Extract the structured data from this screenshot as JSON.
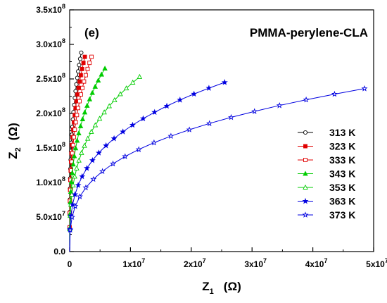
{
  "chart_data": {
    "type": "line",
    "title": "PMMA-perylene-CLA",
    "panel_label": "(e)",
    "xlabel": {
      "main": "Z",
      "sub": "1",
      "unit": "(Ω)"
    },
    "ylabel": {
      "main": "Z",
      "sub": "2",
      "unit": "(Ω)"
    },
    "xlim": [
      0,
      50000000
    ],
    "ylim": [
      0,
      350000000
    ],
    "x_ticks": [
      {
        "value": 0,
        "label": "0"
      },
      {
        "value": 10000000,
        "mant": "1x10",
        "exp": "7"
      },
      {
        "value": 20000000,
        "mant": "2x10",
        "exp": "7"
      },
      {
        "value": 30000000,
        "mant": "3x10",
        "exp": "7"
      },
      {
        "value": 40000000,
        "mant": "4x10",
        "exp": "7"
      },
      {
        "value": 50000000,
        "mant": "5x10",
        "exp": "7"
      }
    ],
    "y_ticks": [
      {
        "value": 0,
        "label": "0.0"
      },
      {
        "value": 50000000,
        "mant": "5.0x10",
        "exp": "7"
      },
      {
        "value": 100000000,
        "mant": "1.0x10",
        "exp": "8"
      },
      {
        "value": 150000000,
        "mant": "1.5x10",
        "exp": "8"
      },
      {
        "value": 200000000,
        "mant": "2.0x10",
        "exp": "8"
      },
      {
        "value": 250000000,
        "mant": "2.5x10",
        "exp": "8"
      },
      {
        "value": 300000000,
        "mant": "3.0x10",
        "exp": "8"
      },
      {
        "value": 350000000,
        "mant": "3.5x10",
        "exp": "8"
      }
    ],
    "legend_position": "right",
    "grid": false,
    "series": [
      {
        "name": "313 K",
        "color": "#000000",
        "marker": "circle-open",
        "x_end": 1900000,
        "y_end": 288000000,
        "n_points": 22
      },
      {
        "name": "323 K",
        "color": "#e00000",
        "marker": "square-filled",
        "x_end": 2500000,
        "y_end": 282000000,
        "n_points": 22
      },
      {
        "name": "333 K",
        "color": "#e00000",
        "marker": "square-open",
        "x_end": 3600000,
        "y_end": 282000000,
        "n_points": 22
      },
      {
        "name": "343 K",
        "color": "#00cc00",
        "marker": "triangle-filled",
        "x_end": 5800000,
        "y_end": 265000000,
        "n_points": 21
      },
      {
        "name": "353 K",
        "color": "#00cc00",
        "marker": "triangle-open",
        "x_end": 11500000,
        "y_end": 253000000,
        "n_points": 21
      },
      {
        "name": "363 K",
        "color": "#0000e0",
        "marker": "star-filled",
        "x_end": 25500000,
        "y_end": 245000000,
        "n_points": 20
      },
      {
        "name": "373 K",
        "color": "#0000e0",
        "marker": "star-open",
        "x_end": 48500000,
        "y_end": 236000000,
        "n_points": 20
      }
    ]
  }
}
